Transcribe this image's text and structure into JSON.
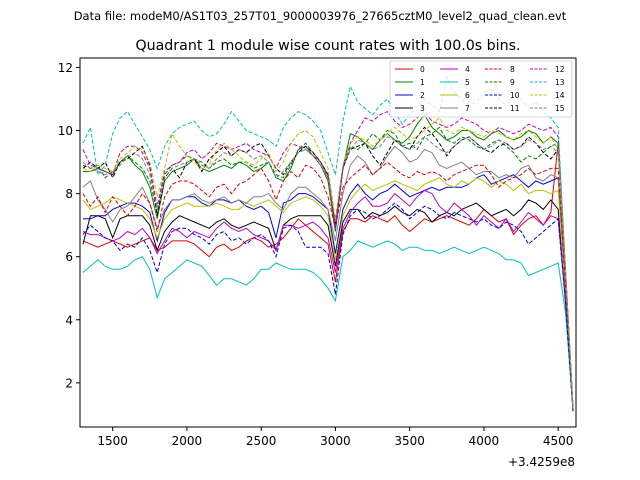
{
  "header": {
    "datafile": "Data file: modeM0/AS1T03_257T01_9000003976_27665cztM0_level2_quad_clean.evt"
  },
  "chart_data": {
    "type": "line",
    "title": "Quadrant 1 module wise count rates with 100.0s bins.",
    "xlabel": "",
    "ylabel": "",
    "offset_label": "+3.4259e8",
    "xlim": [
      1280,
      4620
    ],
    "ylim": [
      0.6,
      12.3
    ],
    "xticks": [
      1500,
      2000,
      2500,
      3000,
      3500,
      4000,
      4500
    ],
    "xtick_labels": [
      "1500",
      "2000",
      "2500",
      "3000",
      "3500",
      "4000",
      "4500"
    ],
    "yticks": [
      2,
      4,
      6,
      8,
      10,
      12
    ],
    "ytick_labels": [
      "2",
      "4",
      "6",
      "8",
      "10",
      "12"
    ],
    "x": [
      1300,
      1350,
      1400,
      1450,
      1500,
      1550,
      1600,
      1650,
      1700,
      1750,
      1800,
      1850,
      1900,
      1950,
      2000,
      2050,
      2100,
      2150,
      2200,
      2250,
      2300,
      2350,
      2400,
      2450,
      2500,
      2550,
      2600,
      2650,
      2700,
      2750,
      2800,
      2850,
      2900,
      2950,
      3000,
      3050,
      3100,
      3150,
      3200,
      3250,
      3300,
      3350,
      3400,
      3450,
      3500,
      3550,
      3600,
      3650,
      3700,
      3750,
      3800,
      3850,
      3900,
      3950,
      4000,
      4050,
      4100,
      4150,
      4200,
      4250,
      4300,
      4350,
      4400,
      4450,
      4500,
      4550,
      4600
    ],
    "series": [
      {
        "name": "0",
        "color": "#e00000",
        "dash": "solid",
        "values": [
          6.5,
          6.4,
          6.3,
          6.4,
          6.5,
          6.4,
          6.3,
          6.4,
          6.5,
          6.6,
          6.2,
          6.3,
          6.5,
          6.5,
          6.5,
          6.4,
          6.2,
          6.0,
          6.3,
          6.4,
          6.2,
          6.3,
          6.5,
          6.6,
          6.5,
          6.3,
          6.4,
          6.6,
          6.9,
          7.2,
          7.0,
          6.8,
          6.6,
          6.4,
          5.2,
          6.8,
          7.2,
          7.2,
          7.1,
          7.3,
          7.2,
          7.1,
          7.3,
          7.0,
          6.8,
          7.0,
          7.2,
          7.1,
          7.2,
          7.3,
          7.2,
          7.1,
          7.0,
          7.2,
          7.5,
          7.3,
          7.1,
          7.2,
          6.7,
          7.0,
          7.2,
          7.3,
          7.0,
          7.4,
          9.6,
          5.0,
          1.2
        ]
      },
      {
        "name": "1",
        "color": "#008000",
        "dash": "solid",
        "values": [
          8.7,
          8.7,
          8.8,
          8.7,
          8.6,
          9.0,
          9.2,
          8.9,
          8.7,
          8.2,
          7.2,
          8.4,
          8.7,
          8.8,
          8.9,
          9.1,
          8.8,
          8.7,
          8.8,
          8.9,
          8.8,
          9.0,
          8.9,
          8.7,
          8.8,
          9.0,
          8.5,
          8.4,
          8.8,
          9.4,
          9.5,
          9.2,
          8.9,
          8.4,
          6.8,
          8.8,
          9.9,
          9.8,
          9.6,
          9.4,
          9.7,
          9.9,
          9.7,
          9.6,
          9.8,
          10.2,
          10.5,
          10.1,
          9.9,
          9.7,
          9.8,
          10.0,
          10.0,
          9.8,
          9.7,
          9.9,
          10.0,
          9.8,
          9.7,
          9.8,
          10.0,
          9.9,
          9.6,
          9.8,
          9.6,
          5.5,
          1.2
        ]
      },
      {
        "name": "2",
        "color": "#0000e0",
        "dash": "solid",
        "values": [
          7.2,
          7.2,
          7.3,
          7.3,
          7.5,
          7.6,
          7.7,
          7.7,
          7.6,
          7.4,
          6.5,
          7.4,
          7.8,
          7.8,
          7.9,
          7.9,
          7.7,
          7.6,
          7.8,
          7.8,
          7.7,
          7.8,
          7.6,
          7.5,
          7.6,
          7.4,
          6.6,
          7.7,
          7.8,
          8.0,
          8.0,
          7.9,
          7.7,
          7.5,
          6.1,
          7.5,
          8.0,
          8.3,
          8.0,
          7.8,
          8.0,
          8.1,
          8.3,
          8.1,
          7.9,
          8.0,
          8.1,
          8.2,
          8.1,
          8.2,
          8.2,
          8.2,
          8.3,
          8.5,
          8.6,
          8.3,
          8.4,
          8.5,
          8.6,
          8.4,
          8.2,
          8.4,
          8.3,
          8.4,
          8.5,
          5.0,
          1.2
        ]
      },
      {
        "name": "3",
        "color": "#000000",
        "dash": "solid",
        "values": [
          6.4,
          7.3,
          7.3,
          7.2,
          6.6,
          7.2,
          7.3,
          7.3,
          7.3,
          7.0,
          6.2,
          6.8,
          7.1,
          7.3,
          7.2,
          7.1,
          7.0,
          6.9,
          7.1,
          7.2,
          7.0,
          6.9,
          7.0,
          7.1,
          7.0,
          6.9,
          6.2,
          7.0,
          7.2,
          7.3,
          7.3,
          7.3,
          7.3,
          7.0,
          5.7,
          7.1,
          7.5,
          7.5,
          7.2,
          7.4,
          7.3,
          7.4,
          7.6,
          7.4,
          7.3,
          7.5,
          7.4,
          7.1,
          7.3,
          7.4,
          7.3,
          7.5,
          7.6,
          7.7,
          7.5,
          7.3,
          7.4,
          7.5,
          7.3,
          7.5,
          7.8,
          7.7,
          7.5,
          7.8,
          7.5,
          4.5,
          1.1
        ]
      },
      {
        "name": "4",
        "color": "#c000c0",
        "dash": "solid",
        "values": [
          6.8,
          6.7,
          6.7,
          6.6,
          6.5,
          6.6,
          6.8,
          6.7,
          6.9,
          6.6,
          6.1,
          6.5,
          6.9,
          6.8,
          6.6,
          6.8,
          6.7,
          6.6,
          6.9,
          7.1,
          6.9,
          6.8,
          6.9,
          6.7,
          6.6,
          6.5,
          6.2,
          7.0,
          7.0,
          6.9,
          7.0,
          7.1,
          6.9,
          6.6,
          5.5,
          6.9,
          7.4,
          7.7,
          7.9,
          7.6,
          7.6,
          7.7,
          8.0,
          7.8,
          7.6,
          7.9,
          8.1,
          8.0,
          7.6,
          7.4,
          7.7,
          7.5,
          7.3,
          7.0,
          7.3,
          7.1,
          6.9,
          7.2,
          6.8,
          7.1,
          7.4,
          7.2,
          7.0,
          7.3,
          7.2,
          4.6,
          1.2
        ]
      },
      {
        "name": "5",
        "color": "#00bfbf",
        "dash": "solid",
        "values": [
          5.5,
          5.7,
          5.9,
          5.7,
          5.6,
          5.6,
          5.7,
          5.9,
          6.0,
          5.6,
          4.7,
          5.3,
          5.5,
          5.7,
          5.9,
          5.8,
          5.7,
          5.4,
          5.1,
          5.3,
          5.3,
          5.2,
          5.1,
          5.3,
          5.6,
          5.6,
          5.8,
          5.7,
          5.6,
          5.6,
          5.6,
          5.5,
          5.3,
          5.0,
          4.6,
          6.0,
          6.2,
          6.5,
          6.4,
          6.3,
          6.4,
          6.5,
          6.4,
          6.2,
          6.3,
          6.3,
          6.2,
          6.2,
          6.1,
          6.2,
          6.3,
          6.2,
          6.1,
          6.2,
          6.3,
          6.2,
          6.1,
          5.9,
          5.9,
          5.8,
          5.4,
          5.5,
          5.6,
          5.7,
          5.8,
          4.2,
          1.2
        ]
      },
      {
        "name": "6",
        "color": "#bfbf00",
        "dash": "solid",
        "values": [
          7.8,
          7.5,
          7.6,
          7.7,
          7.9,
          7.8,
          7.7,
          7.6,
          7.5,
          7.2,
          6.6,
          7.2,
          7.5,
          7.6,
          7.7,
          7.6,
          7.6,
          7.6,
          7.7,
          7.6,
          7.5,
          7.5,
          7.7,
          7.6,
          7.7,
          7.8,
          7.6,
          7.4,
          7.7,
          7.8,
          7.9,
          7.8,
          7.6,
          7.3,
          5.9,
          7.3,
          7.8,
          8.1,
          8.3,
          8.1,
          8.2,
          8.3,
          8.4,
          8.3,
          8.2,
          8.1,
          8.3,
          8.4,
          8.5,
          8.3,
          8.2,
          8.4,
          8.3,
          8.5,
          8.4,
          8.2,
          8.4,
          8.3,
          8.1,
          8.3,
          8.0,
          8.1,
          8.1,
          8.0,
          8.1,
          5.0,
          1.2
        ]
      },
      {
        "name": "7",
        "color": "#808080",
        "dash": "solid",
        "values": [
          8.2,
          8.4,
          7.8,
          7.5,
          7.1,
          7.5,
          7.6,
          7.9,
          8.2,
          7.7,
          6.9,
          7.5,
          7.8,
          7.8,
          7.9,
          8.0,
          7.8,
          7.7,
          7.8,
          7.9,
          7.7,
          7.8,
          7.7,
          7.9,
          7.9,
          8.0,
          7.7,
          7.5,
          8.0,
          8.2,
          8.2,
          8.0,
          7.8,
          7.5,
          6.5,
          8.0,
          8.9,
          9.2,
          9.0,
          8.6,
          8.8,
          9.2,
          9.5,
          9.3,
          9.0,
          9.1,
          9.4,
          9.3,
          8.9,
          8.8,
          8.9,
          9.0,
          8.8,
          8.6,
          8.7,
          8.7,
          8.5,
          8.6,
          8.5,
          8.8,
          8.9,
          8.5,
          8.4,
          8.6,
          8.5,
          5.0,
          1.2
        ]
      },
      {
        "name": "8",
        "color": "#e00000",
        "dash": "dashed",
        "values": [
          8.0,
          7.6,
          7.9,
          7.4,
          7.9,
          7.6,
          7.3,
          7.6,
          8.0,
          7.7,
          6.8,
          7.9,
          8.3,
          8.4,
          8.4,
          8.3,
          8.1,
          7.9,
          8.2,
          8.3,
          8.0,
          8.3,
          8.4,
          8.6,
          8.8,
          8.4,
          7.8,
          8.4,
          8.7,
          8.5,
          8.9,
          8.8,
          8.5,
          7.9,
          6.9,
          8.2,
          8.5,
          8.7,
          8.9,
          8.6,
          8.8,
          9.0,
          8.8,
          8.6,
          8.5,
          8.7,
          8.6,
          8.7,
          8.6,
          8.4,
          8.6,
          8.7,
          8.8,
          8.9,
          8.9,
          8.6,
          8.2,
          8.4,
          8.5,
          8.6,
          8.8,
          8.6,
          8.7,
          8.8,
          8.8,
          5.0,
          1.2
        ]
      },
      {
        "name": "9",
        "color": "#008000",
        "dash": "dashed",
        "values": [
          8.9,
          8.8,
          8.9,
          8.5,
          8.7,
          9.0,
          9.2,
          9.0,
          8.8,
          8.4,
          7.4,
          8.6,
          8.9,
          9.0,
          9.2,
          9.1,
          9.0,
          8.8,
          9.0,
          9.1,
          8.9,
          9.0,
          9.0,
          8.8,
          8.9,
          9.0,
          8.6,
          8.5,
          8.9,
          9.4,
          9.6,
          9.3,
          9.0,
          8.6,
          7.0,
          8.8,
          9.5,
          9.4,
          9.6,
          9.9,
          9.7,
          10.0,
          9.9,
          9.5,
          9.6,
          9.4,
          9.8,
          9.9,
          10.1,
          9.7,
          9.6,
          9.8,
          9.7,
          9.5,
          9.4,
          9.6,
          9.7,
          9.5,
          9.3,
          9.0,
          9.2,
          9.1,
          9.3,
          9.5,
          9.6,
          5.5,
          1.2
        ]
      },
      {
        "name": "10",
        "color": "#0000e0",
        "dash": "dashed",
        "values": [
          6.7,
          7.0,
          6.8,
          6.6,
          6.5,
          6.2,
          6.4,
          6.3,
          6.6,
          6.2,
          5.5,
          6.4,
          6.8,
          6.9,
          6.9,
          6.7,
          6.6,
          6.4,
          6.7,
          6.8,
          6.5,
          6.6,
          6.4,
          6.6,
          6.7,
          6.5,
          6.0,
          6.9,
          7.0,
          6.8,
          6.3,
          6.3,
          6.3,
          6.1,
          4.8,
          6.7,
          7.3,
          7.5,
          7.4,
          7.2,
          7.3,
          7.5,
          7.7,
          7.5,
          7.2,
          7.4,
          7.6,
          7.5,
          7.3,
          7.2,
          7.4,
          7.3,
          7.2,
          7.1,
          7.2,
          7.0,
          6.9,
          7.1,
          7.0,
          6.8,
          6.4,
          6.6,
          6.8,
          7.0,
          7.2,
          4.5,
          1.1
        ]
      },
      {
        "name": "11",
        "color": "#000000",
        "dash": "dashed",
        "values": [
          8.8,
          9.0,
          8.8,
          9.0,
          8.5,
          9.0,
          9.1,
          9.3,
          9.5,
          8.9,
          7.3,
          8.5,
          8.8,
          8.5,
          9.0,
          9.1,
          8.7,
          9.1,
          9.3,
          9.5,
          9.2,
          9.4,
          9.3,
          9.5,
          9.6,
          9.2,
          8.8,
          8.6,
          9.0,
          9.3,
          9.5,
          9.3,
          9.0,
          8.6,
          7.0,
          8.8,
          9.4,
          9.5,
          9.6,
          9.2,
          8.9,
          9.3,
          9.7,
          9.5,
          9.4,
          9.8,
          10.1,
          9.9,
          9.6,
          9.2,
          9.5,
          9.7,
          9.8,
          9.6,
          9.4,
          9.3,
          9.5,
          9.6,
          9.4,
          9.5,
          9.8,
          9.6,
          9.3,
          9.1,
          9.4,
          5.5,
          1.2
        ]
      },
      {
        "name": "12",
        "color": "#c000c0",
        "dash": "dashed",
        "values": [
          9.4,
          8.9,
          8.8,
          8.7,
          8.6,
          9.3,
          9.5,
          9.5,
          9.3,
          8.8,
          7.6,
          8.7,
          8.9,
          9.0,
          9.3,
          9.4,
          9.1,
          9.3,
          9.6,
          9.5,
          9.4,
          9.5,
          9.6,
          9.4,
          9.3,
          9.2,
          8.8,
          9.3,
          9.6,
          9.5,
          9.4,
          9.2,
          9.0,
          8.5,
          6.9,
          8.8,
          9.6,
          10.0,
          10.4,
          10.3,
          10.5,
          10.6,
          10.3,
          10.1,
          10.2,
          10.4,
          10.6,
          10.3,
          10.2,
          10.1,
          10.2,
          10.4,
          10.3,
          10.2,
          10.0,
          9.9,
          10.1,
          10.0,
          9.9,
          10.0,
          10.2,
          10.1,
          10.0,
          10.1,
          9.8,
          5.5,
          1.2
        ]
      },
      {
        "name": "13",
        "color": "#00bfbf",
        "dash": "dashed",
        "values": [
          9.6,
          10.1,
          8.6,
          8.9,
          9.9,
          10.4,
          10.6,
          10.2,
          9.8,
          9.4,
          8.8,
          9.5,
          9.9,
          10.1,
          10.2,
          10.3,
          10.0,
          9.8,
          9.9,
          10.2,
          10.6,
          10.3,
          10.0,
          9.9,
          9.8,
          9.7,
          9.5,
          10.1,
          10.4,
          10.6,
          10.5,
          10.3,
          10.0,
          9.3,
          8.6,
          10.3,
          11.4,
          10.9,
          10.7,
          10.5,
          10.8,
          11.0,
          10.6,
          10.2,
          10.5,
          10.8,
          11.0,
          10.8,
          10.6,
          11.7,
          11.2,
          11.0,
          10.8,
          10.9,
          11.2,
          11.3,
          11.0,
          10.8,
          11.1,
          11.0,
          10.7,
          10.9,
          10.6,
          10.4,
          10.1,
          5.5,
          1.2
        ]
      },
      {
        "name": "14",
        "color": "#bfbf00",
        "dash": "dashed",
        "values": [
          8.8,
          8.7,
          8.9,
          8.8,
          8.7,
          9.1,
          9.3,
          9.5,
          9.4,
          9.0,
          7.9,
          8.8,
          9.9,
          9.5,
          9.2,
          9.0,
          8.8,
          8.9,
          9.4,
          9.6,
          9.4,
          9.2,
          9.0,
          8.9,
          9.1,
          9.3,
          8.7,
          9.0,
          9.6,
          9.9,
          10.0,
          9.8,
          9.3,
          8.8,
          7.2,
          8.9,
          9.6,
          9.8,
          9.7,
          9.5,
          9.7,
          9.9,
          10.1,
          9.9,
          9.7,
          9.8,
          10.0,
          10.2,
          10.4,
          10.0,
          9.9,
          10.1,
          10.0,
          9.9,
          9.8,
          10.0,
          9.9,
          9.8,
          9.7,
          9.9,
          10.0,
          9.8,
          9.6,
          9.8,
          9.4,
          5.5,
          1.2
        ]
      },
      {
        "name": "15",
        "color": "#808080",
        "dash": "dashed",
        "values": [
          9.0,
          8.8,
          8.7,
          8.6,
          8.7,
          8.9,
          9.2,
          9.3,
          9.1,
          8.6,
          7.5,
          8.5,
          8.8,
          8.9,
          9.0,
          9.1,
          8.9,
          8.8,
          9.1,
          9.3,
          9.2,
          9.4,
          9.3,
          9.1,
          9.2,
          9.0,
          8.5,
          8.7,
          9.0,
          9.3,
          9.4,
          9.2,
          8.9,
          8.5,
          7.1,
          8.9,
          9.4,
          9.7,
          9.6,
          9.4,
          9.5,
          9.8,
          9.7,
          9.5,
          9.4,
          9.6,
          9.8,
          9.6,
          9.4,
          9.3,
          9.5,
          9.7,
          9.8,
          9.6,
          9.4,
          9.5,
          9.7,
          9.6,
          9.4,
          9.5,
          9.7,
          9.6,
          9.4,
          9.5,
          9.3,
          5.5,
          1.2
        ]
      }
    ],
    "legend_loc": "upper-right"
  }
}
